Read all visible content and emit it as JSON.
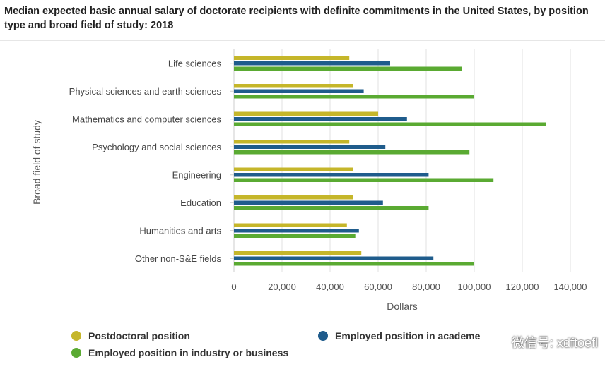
{
  "title": "Median expected basic annual salary of doctorate recipients with definite commitments in the United States, by position type and broad field of study: 2018",
  "chart_data": {
    "type": "bar",
    "orientation": "horizontal",
    "categories": [
      "Life sciences",
      "Physical sciences and earth sciences",
      "Mathematics and computer sciences",
      "Psychology and social sciences",
      "Engineering",
      "Education",
      "Humanities and arts",
      "Other non-S&E fields"
    ],
    "series": [
      {
        "name": "Postdoctoral position",
        "color": "#c5b62a",
        "values": [
          48000,
          49500,
          60000,
          48000,
          49500,
          49500,
          47000,
          53000
        ]
      },
      {
        "name": "Employed position in academe",
        "color": "#1f5c8c",
        "values": [
          65000,
          54000,
          72000,
          63000,
          81000,
          62000,
          52000,
          83000
        ]
      },
      {
        "name": "Employed position in industry or business",
        "color": "#5aaa32",
        "values": [
          95000,
          100000,
          130000,
          98000,
          108000,
          81000,
          50500,
          100000
        ]
      }
    ],
    "xlabel": "Dollars",
    "ylabel": "Broad field of study",
    "xlim": [
      0,
      140000
    ],
    "xticks": [
      "0",
      "20,000",
      "40,000",
      "60,000",
      "80,000",
      "100,000",
      "120,000",
      "140,000"
    ],
    "grid": true,
    "legend_position": "bottom"
  },
  "watermark": "微信号: xdftoefl"
}
